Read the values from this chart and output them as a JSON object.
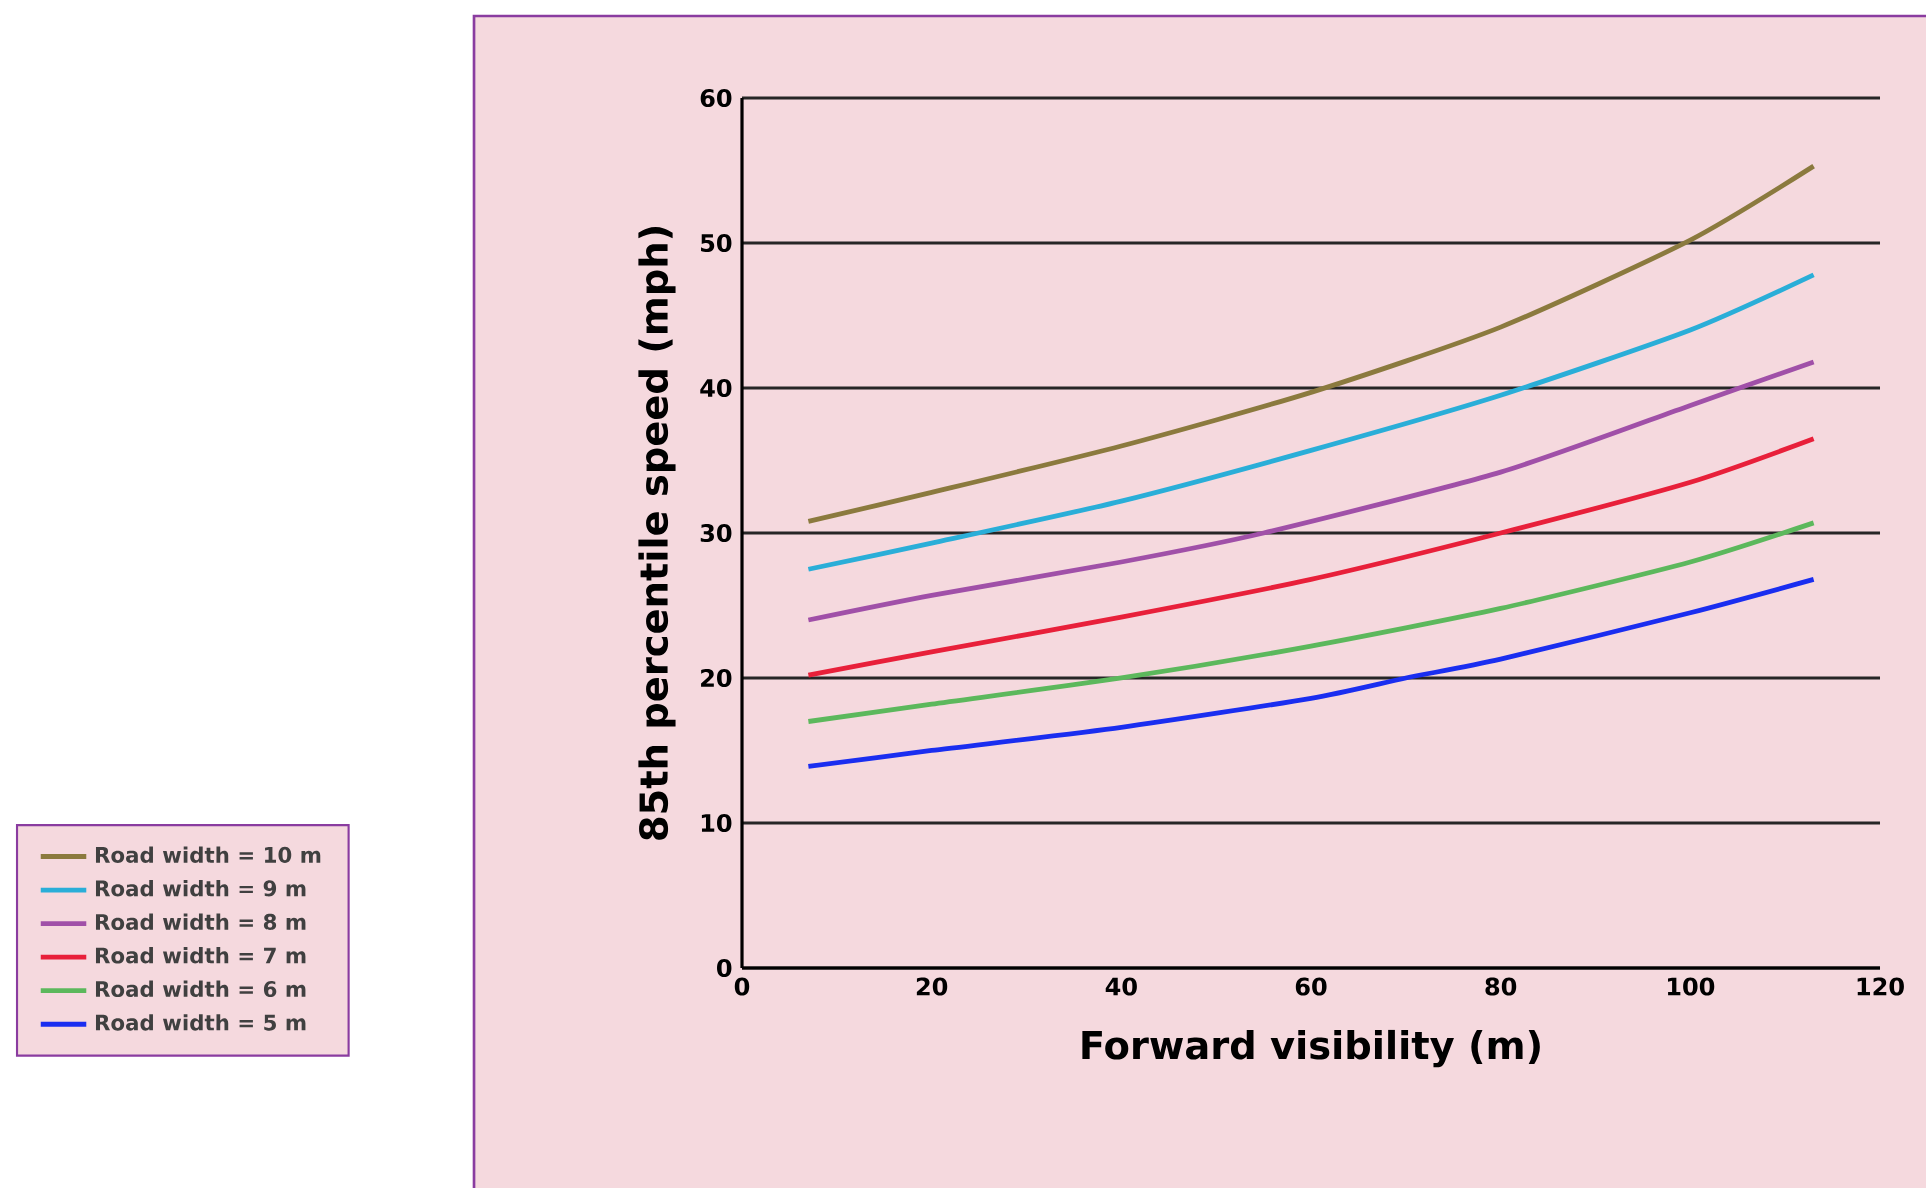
{
  "chart_data": {
    "type": "line",
    "xlabel": "Forward visibility (m)",
    "ylabel": "85th percentile speed (mph)",
    "xlim": [
      0,
      120
    ],
    "ylim": [
      0,
      60
    ],
    "xticks": [
      0,
      20,
      40,
      60,
      80,
      100,
      120
    ],
    "yticks": [
      0,
      10,
      20,
      30,
      40,
      50,
      60
    ],
    "grid": "y",
    "legend": "bottom left",
    "series": [
      {
        "name": "Road width = 10 m",
        "color": "#8b7a3e",
        "x": [
          7,
          20,
          40,
          60,
          80,
          100,
          113
        ],
        "values": [
          30.8,
          32.8,
          36,
          39.7,
          44.2,
          50.2,
          55.3
        ]
      },
      {
        "name": "Road width = 9 m",
        "color": "#2aaed8",
        "x": [
          7,
          20,
          40,
          60,
          80,
          100,
          113
        ],
        "values": [
          27.5,
          29.3,
          32.2,
          35.7,
          39.5,
          44,
          47.8
        ]
      },
      {
        "name": "Road width = 8 m",
        "color": "#a050a8",
        "x": [
          7,
          20,
          40,
          55,
          80,
          100,
          113
        ],
        "values": [
          24,
          25.7,
          28,
          30,
          34.2,
          38.8,
          41.8
        ]
      },
      {
        "name": "Road width = 7 m",
        "color": "#e8203a",
        "x": [
          7,
          20,
          40,
          60,
          80,
          100,
          113
        ],
        "values": [
          20.2,
          21.8,
          24.2,
          26.8,
          30,
          33.5,
          36.5
        ]
      },
      {
        "name": "Road width = 6 m",
        "color": "#5cb85c",
        "x": [
          7,
          20,
          40,
          60,
          80,
          100,
          113
        ],
        "values": [
          17,
          18.2,
          20,
          22.2,
          24.8,
          28,
          30.7
        ]
      },
      {
        "name": "Road width = 5 m",
        "color": "#1a2ef0",
        "x": [
          7,
          20,
          40,
          60,
          70,
          80,
          100,
          113
        ],
        "values": [
          13.9,
          15,
          16.6,
          18.6,
          20,
          21.3,
          24.5,
          26.8
        ]
      }
    ]
  }
}
